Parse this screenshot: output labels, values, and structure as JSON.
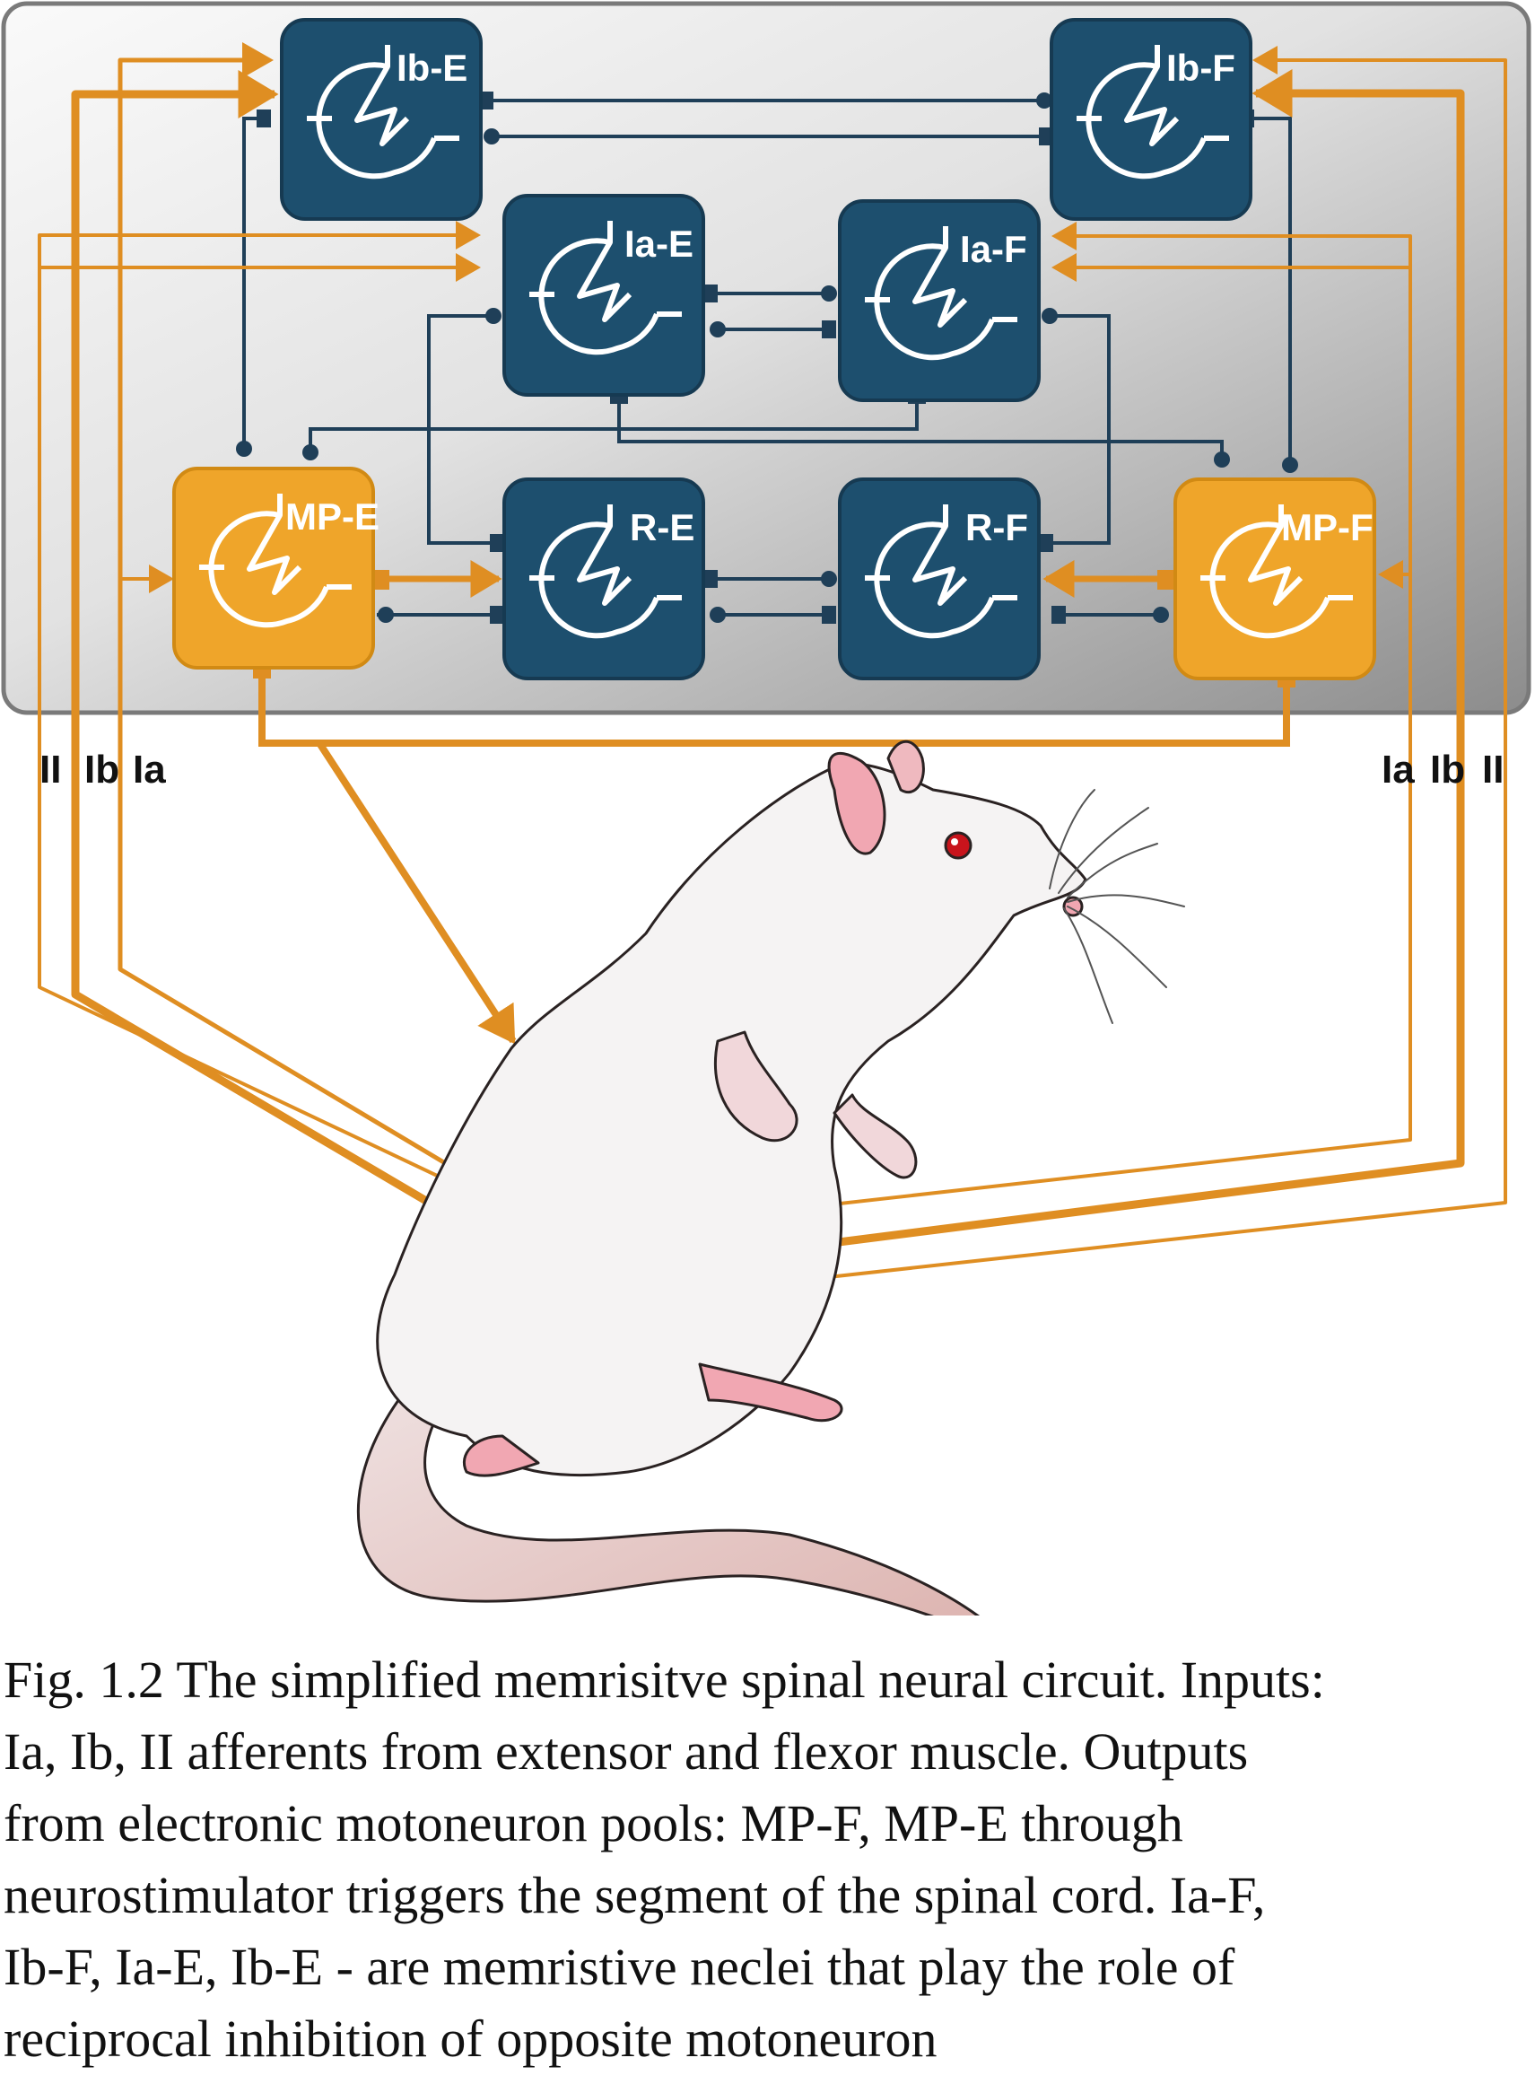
{
  "colors": {
    "neuron_blue": "#1d4f6e",
    "neuron_orange": "#efa52a",
    "connection_dark": "#1f3f58",
    "afferent_orange": "#df8e22",
    "panel_light": "#f4f4f4",
    "panel_dark": "#8e8e8e",
    "rat_body": "#f5f3f3",
    "rat_pink": "#f1a7b2"
  },
  "nodes": [
    {
      "id": "ib-e",
      "label": "Ib-E",
      "kind": "interneuron"
    },
    {
      "id": "ib-f",
      "label": "Ib-F",
      "kind": "interneuron"
    },
    {
      "id": "ia-e",
      "label": "Ia-E",
      "kind": "interneuron"
    },
    {
      "id": "ia-f",
      "label": "Ia-F",
      "kind": "interneuron"
    },
    {
      "id": "mp-e",
      "label": "MP-E",
      "kind": "motoneuron-pool"
    },
    {
      "id": "r-e",
      "label": "R-E",
      "kind": "interneuron"
    },
    {
      "id": "r-f",
      "label": "R-F",
      "kind": "interneuron"
    },
    {
      "id": "mp-f",
      "label": "MP-F",
      "kind": "motoneuron-pool"
    }
  ],
  "afferent_labels": {
    "left": [
      "II",
      "Ib",
      "Ia"
    ],
    "right": [
      "Ia",
      "Ib",
      "II"
    ]
  },
  "caption_lines": [
    "Fig. 1.2 The simplified memrisitve spinal neural circuit. Inputs:",
    "Ia, Ib, II afferents from extensor and flexor muscle. Outputs",
    "from electronic motoneuron pools: MP-F, MP-E through",
    "neurostimulator triggers the segment of the spinal cord. Ia-F,",
    "Ib-F, Ia-E, Ib-E - are memristive neclei that play the role of",
    "reciprocal inhibition of opposite motoneuron"
  ]
}
